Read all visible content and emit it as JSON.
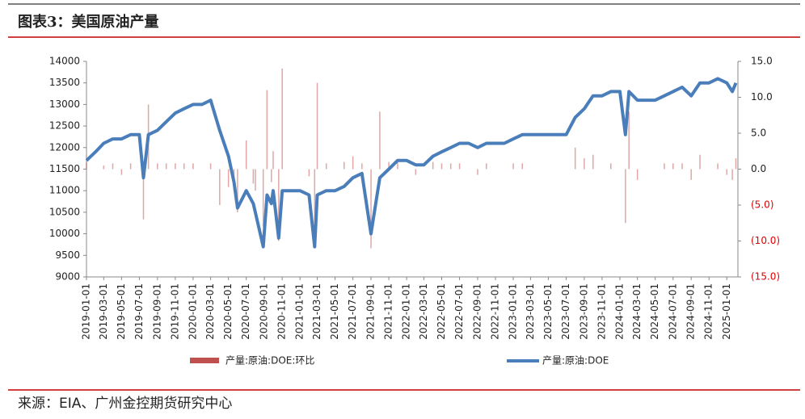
{
  "chart_data": {
    "type": "bar_line",
    "title": "图表3：美国原油产量",
    "source": "来源：EIA、广州金控期货研究中心",
    "x": [
      "2019-01-01",
      "2019-02-01",
      "2019-03-01",
      "2019-04-01",
      "2019-05-01",
      "2019-06-01",
      "2019-07-01",
      "2019-07-15",
      "2019-08-01",
      "2019-09-01",
      "2019-10-01",
      "2019-11-01",
      "2019-12-01",
      "2020-01-01",
      "2020-02-01",
      "2020-03-01",
      "2020-04-01",
      "2020-05-01",
      "2020-05-20",
      "2020-06-01",
      "2020-07-01",
      "2020-07-25",
      "2020-08-01",
      "2020-08-28",
      "2020-09-10",
      "2020-09-25",
      "2020-10-01",
      "2020-10-20",
      "2020-11-01",
      "2020-12-01",
      "2021-01-01",
      "2021-02-01",
      "2021-02-20",
      "2021-03-01",
      "2021-04-01",
      "2021-05-01",
      "2021-06-01",
      "2021-07-01",
      "2021-08-01",
      "2021-09-01",
      "2021-10-01",
      "2021-11-01",
      "2021-12-01",
      "2022-01-01",
      "2022-02-01",
      "2022-03-01",
      "2022-04-01",
      "2022-05-01",
      "2022-06-01",
      "2022-07-01",
      "2022-08-01",
      "2022-09-01",
      "2022-10-01",
      "2022-11-01",
      "2022-12-01",
      "2023-01-01",
      "2023-02-01",
      "2023-03-01",
      "2023-04-01",
      "2023-05-01",
      "2023-06-01",
      "2023-07-01",
      "2023-08-01",
      "2023-09-01",
      "2023-10-01",
      "2023-11-01",
      "2023-12-01",
      "2024-01-01",
      "2024-01-20",
      "2024-02-01",
      "2024-03-01",
      "2024-04-01",
      "2024-05-01",
      "2024-06-01",
      "2024-07-01",
      "2024-08-01",
      "2024-09-01",
      "2024-10-01",
      "2024-11-01",
      "2024-12-01",
      "2025-01-01",
      "2025-01-20",
      "2025-02-01"
    ],
    "series": [
      {
        "name": "产量:原油:DOE:环比",
        "kind": "bar",
        "axis": "y2",
        "color": "#c0504d",
        "values": [
          0.9,
          0.0,
          0.5,
          0.8,
          -0.8,
          0.8,
          0.0,
          -7.0,
          9.0,
          0.8,
          0.8,
          0.8,
          0.8,
          0.8,
          0.0,
          0.8,
          -5.0,
          -2.5,
          -3.0,
          -6.0,
          4.0,
          -2.0,
          -3.0,
          -8.0,
          11.0,
          -1.8,
          2.5,
          -10.0,
          14.0,
          0.0,
          0.0,
          -1.0,
          -11.0,
          12.0,
          0.8,
          0.0,
          1.0,
          1.8,
          0.8,
          -11.0,
          8.0,
          1.0,
          1.0,
          0.0,
          -0.8,
          0.0,
          1.0,
          0.8,
          0.8,
          0.8,
          0.0,
          -0.8,
          0.8,
          0.0,
          0.0,
          0.8,
          0.8,
          0.0,
          0.0,
          0.0,
          0.0,
          0.0,
          3.0,
          1.5,
          2.0,
          0.0,
          0.8,
          0.0,
          -7.5,
          8.0,
          -1.5,
          0.0,
          0.0,
          0.8,
          0.8,
          0.8,
          -1.5,
          2.0,
          0.0,
          0.8,
          -0.8,
          -1.5,
          1.5
        ]
      },
      {
        "name": "产量:原油:DOE",
        "kind": "line",
        "color": "#4a7ebb",
        "values": [
          11700,
          11900,
          12100,
          12200,
          12200,
          12300,
          12300,
          11300,
          12300,
          12400,
          12600,
          12800,
          12900,
          13000,
          13000,
          13100,
          12400,
          11800,
          11200,
          10600,
          11000,
          10700,
          10500,
          9700,
          10900,
          10700,
          11000,
          9900,
          11000,
          11000,
          11000,
          10900,
          9700,
          10900,
          11000,
          11000,
          11100,
          11300,
          11400,
          10000,
          11300,
          11500,
          11700,
          11700,
          11600,
          11600,
          11800,
          11900,
          12000,
          12100,
          12100,
          12000,
          12100,
          12100,
          12100,
          12200,
          12300,
          12300,
          12300,
          12300,
          12300,
          12300,
          12700,
          12900,
          13200,
          13200,
          13300,
          13300,
          12300,
          13300,
          13100,
          13100,
          13100,
          13200,
          13300,
          13400,
          13200,
          13500,
          13500,
          13600,
          13500,
          13300,
          13500
        ]
      }
    ],
    "xlim": [
      "2019-01-01",
      "2025-02-08"
    ],
    "xticks": [
      "2019-01-01",
      "2019-03-01",
      "2019-05-01",
      "2019-07-01",
      "2019-09-01",
      "2019-11-01",
      "2020-01-01",
      "2020-03-01",
      "2020-05-01",
      "2020-07-01",
      "2020-09-01",
      "2020-11-01",
      "2021-01-01",
      "2021-03-01",
      "2021-05-01",
      "2021-07-01",
      "2021-09-01",
      "2021-11-01",
      "2022-01-01",
      "2022-03-01",
      "2022-05-01",
      "2022-07-01",
      "2022-09-01",
      "2022-11-01",
      "2023-01-01",
      "2023-03-01",
      "2023-05-01",
      "2023-07-01",
      "2023-09-01",
      "2023-11-01",
      "2024-01-01",
      "2024-03-01",
      "2024-05-01",
      "2024-07-01",
      "2024-09-01",
      "2024-11-01",
      "2025-01-01"
    ],
    "ylim": [
      9000,
      14000
    ],
    "yticks": [
      9000,
      9500,
      10000,
      10500,
      11000,
      11500,
      12000,
      12500,
      13000,
      13500,
      14000
    ],
    "y2lim": [
      -15,
      15
    ],
    "y2ticks": [
      {
        "value": 15,
        "label": "15.0"
      },
      {
        "value": 10,
        "label": "10.0"
      },
      {
        "value": 5,
        "label": "5.0"
      },
      {
        "value": 0,
        "label": "0.0"
      },
      {
        "value": -5,
        "label": "(5.0)"
      },
      {
        "value": -10,
        "label": "(10.0)"
      },
      {
        "value": -15,
        "label": "(15.0)"
      }
    ],
    "negative_color": "#e00000"
  }
}
